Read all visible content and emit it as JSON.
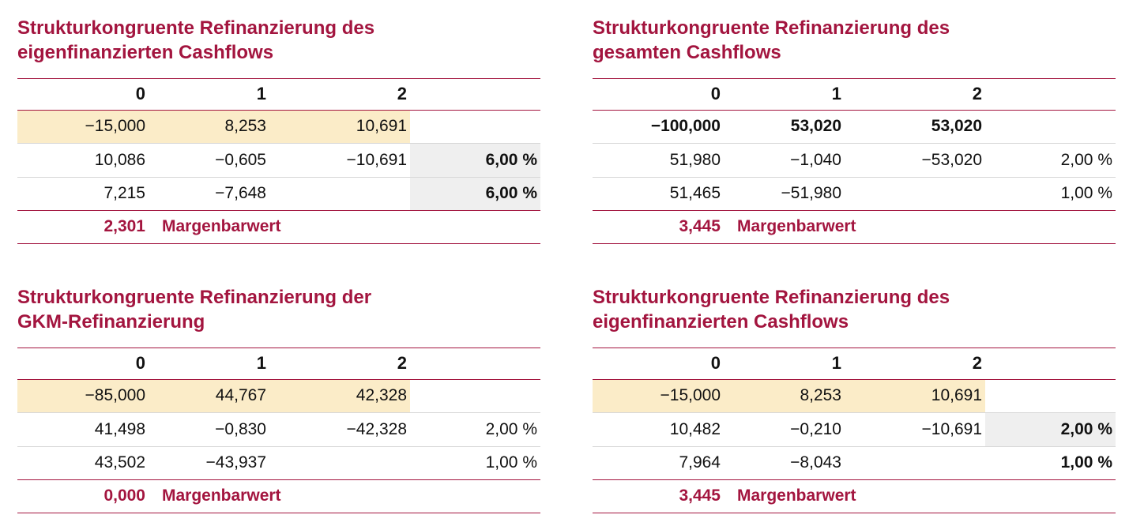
{
  "tables": [
    {
      "title": [
        "Strukturkongruente Refinanzierung des",
        "eigenfinanzierten Cashflows"
      ],
      "header": [
        "0",
        "1",
        "2"
      ],
      "rows": [
        {
          "cells": [
            "−15,000",
            "8,253",
            "10,691"
          ]
        },
        {
          "cells": [
            "10,086",
            "−0,605",
            "−10,691"
          ],
          "rate": "6,00 %"
        },
        {
          "cells": [
            "7,215",
            "−7,648"
          ],
          "rate": "6,00 %"
        }
      ],
      "footer": {
        "value": "2,301",
        "label": "Margenbarwert"
      }
    },
    {
      "title": [
        "Strukturkongruente Refinanzierung des",
        "gesamten Cashflows"
      ],
      "header": [
        "0",
        "1",
        "2"
      ],
      "rows": [
        {
          "cells": [
            "−100,000",
            "53,020",
            "53,020"
          ]
        },
        {
          "cells": [
            "51,980",
            "−1,040",
            "−53,020"
          ],
          "rate": "2,00 %"
        },
        {
          "cells": [
            "51,465",
            "−51,980"
          ],
          "rate": "1,00 %"
        }
      ],
      "footer": {
        "value": "3,445",
        "label": "Margenbarwert"
      }
    },
    {
      "title": [
        "Strukturkongruente Refinanzierung der",
        "GKM-Refinanzierung"
      ],
      "header": [
        "0",
        "1",
        "2"
      ],
      "rows": [
        {
          "cells": [
            "−85,000",
            "44,767",
            "42,328"
          ]
        },
        {
          "cells": [
            "41,498",
            "−0,830",
            "−42,328"
          ],
          "rate": "2,00 %"
        },
        {
          "cells": [
            "43,502",
            "−43,937"
          ],
          "rate": "1,00 %"
        }
      ],
      "footer": {
        "value": "0,000",
        "label": "Margenbarwert"
      }
    },
    {
      "title": [
        "Strukturkongruente Refinanzierung des",
        "eigenfinanzierten Cashflows"
      ],
      "header": [
        "0",
        "1",
        "2"
      ],
      "rows": [
        {
          "cells": [
            "−15,000",
            "8,253",
            "10,691"
          ]
        },
        {
          "cells": [
            "10,482",
            "−0,210",
            "−10,691"
          ],
          "rate": "2,00 %"
        },
        {
          "cells": [
            "7,964",
            "−8,043"
          ],
          "rate": "1,00 %"
        }
      ],
      "footer": {
        "value": "3,445",
        "label": "Margenbarwert"
      }
    }
  ]
}
